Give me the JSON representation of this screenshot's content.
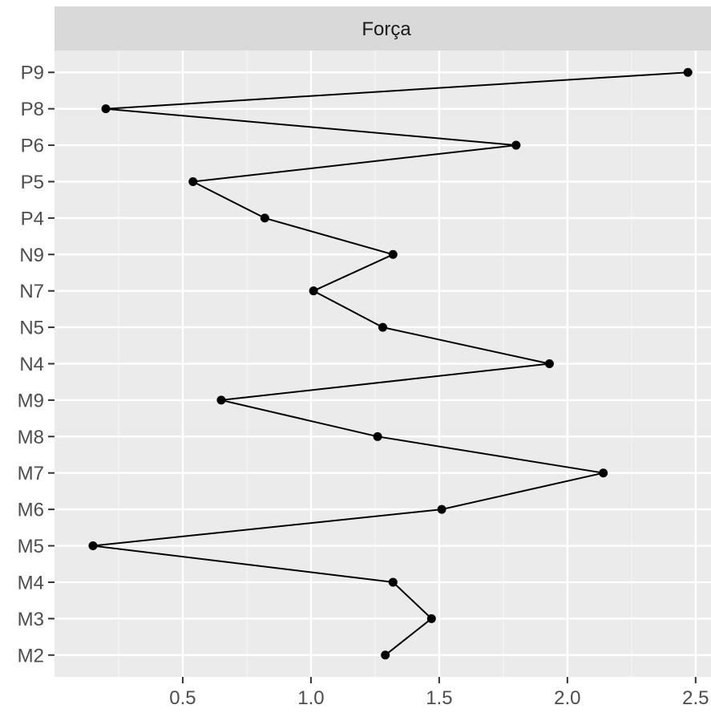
{
  "chart_data": {
    "type": "line",
    "facet_label": "Força",
    "title": "",
    "xlabel": "",
    "ylabel": "",
    "xlim": [
      0.0,
      2.56
    ],
    "x_ticks": [
      0.5,
      1.0,
      1.5,
      2.0,
      2.5
    ],
    "x_tick_labels": [
      "0.5",
      "1.0",
      "1.5",
      "2.0",
      "2.5"
    ],
    "categories": [
      "M2",
      "M3",
      "M4",
      "M5",
      "M6",
      "M7",
      "M8",
      "M9",
      "N4",
      "N5",
      "N7",
      "N9",
      "P4",
      "P5",
      "P6",
      "P8",
      "P9"
    ],
    "series": [
      {
        "values": [
          1.29,
          1.47,
          1.32,
          0.15,
          1.51,
          2.14,
          1.26,
          0.65,
          1.93,
          1.28,
          1.01,
          1.32,
          0.82,
          0.54,
          1.8,
          0.2,
          2.47
        ]
      }
    ],
    "colors": {
      "panel_bg": "#ebebeb",
      "grid_major": "#ffffff",
      "grid_minor": "#f5f5f5",
      "strip_bg": "#d9d9d9",
      "line": "#000000",
      "tick_text": "#4d4d4d"
    }
  }
}
